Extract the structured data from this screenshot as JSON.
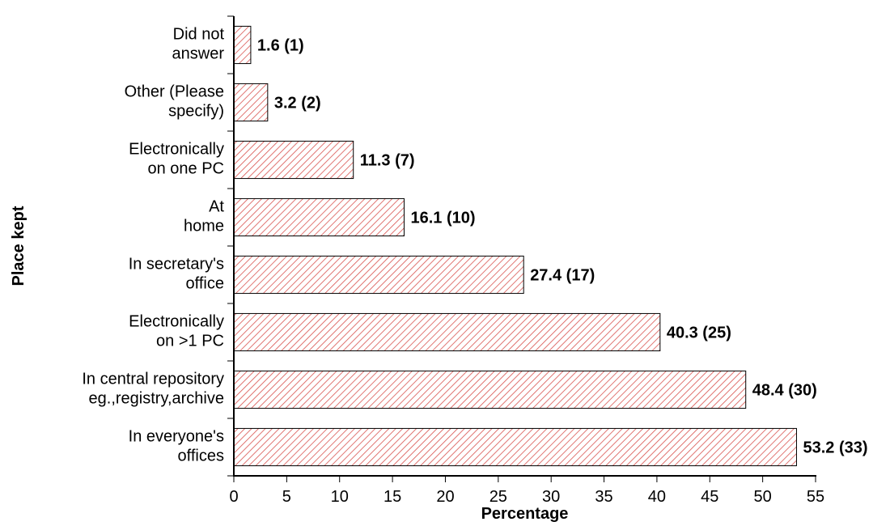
{
  "chart_data": {
    "type": "bar",
    "orientation": "horizontal",
    "xlabel": "Percentage",
    "ylabel": "Place kept",
    "xlim": [
      0,
      55
    ],
    "xticks": [
      0,
      5,
      10,
      15,
      20,
      25,
      30,
      35,
      40,
      45,
      50,
      55
    ],
    "grid": false,
    "legend": "none",
    "bar_color": "#d9534f",
    "categories": [
      {
        "lines": [
          "Did not",
          "answer"
        ],
        "value": 1.6,
        "label": "1.6 (1)"
      },
      {
        "lines": [
          "Other (Please",
          "specify)"
        ],
        "value": 3.2,
        "label": "3.2 (2)"
      },
      {
        "lines": [
          "Electronically",
          "on one PC"
        ],
        "value": 11.3,
        "label": "11.3 (7)"
      },
      {
        "lines": [
          "At",
          "home"
        ],
        "value": 16.1,
        "label": "16.1 (10)"
      },
      {
        "lines": [
          "In secretary's",
          "office"
        ],
        "value": 27.4,
        "label": "27.4 (17)"
      },
      {
        "lines": [
          "Electronically",
          "on >1 PC"
        ],
        "value": 40.3,
        "label": "40.3 (25)"
      },
      {
        "lines": [
          "In central repository",
          "eg.,registry,archive"
        ],
        "value": 48.4,
        "label": "48.4 (30)"
      },
      {
        "lines": [
          "In everyone's",
          "offices"
        ],
        "value": 53.2,
        "label": "53.2 (33)"
      }
    ]
  }
}
